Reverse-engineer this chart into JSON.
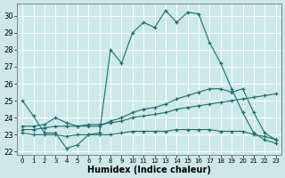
{
  "xlabel": "Humidex (Indice chaleur)",
  "bg_color": "#cce8e8",
  "grid_color": "#b8d8d8",
  "line_color": "#1a6e6e",
  "xlim": [
    -0.5,
    23.5
  ],
  "ylim": [
    21.8,
    30.7
  ],
  "yticks": [
    22,
    23,
    24,
    25,
    26,
    27,
    28,
    29,
    30
  ],
  "xticks": [
    0,
    1,
    2,
    3,
    4,
    5,
    6,
    7,
    8,
    9,
    10,
    11,
    12,
    13,
    14,
    15,
    16,
    17,
    18,
    19,
    20,
    21,
    22,
    23
  ],
  "lines": [
    {
      "x": [
        0,
        1,
        2,
        3,
        4,
        5,
        6,
        7,
        8,
        9,
        10,
        11,
        12,
        13,
        14,
        15,
        16,
        17,
        18,
        19,
        20,
        21,
        22,
        23
      ],
      "y": [
        25.0,
        24.1,
        23.1,
        23.1,
        22.2,
        22.4,
        23.0,
        23.1,
        28.0,
        27.2,
        29.0,
        29.6,
        29.3,
        30.3,
        29.6,
        30.2,
        30.1,
        28.4,
        27.2,
        25.7,
        24.3,
        23.1,
        22.7,
        22.5
      ]
    },
    {
      "x": [
        0,
        1,
        2,
        3,
        4,
        5,
        6,
        7,
        8,
        9,
        10,
        11,
        12,
        13,
        14,
        15,
        16,
        17,
        18,
        19,
        20,
        21,
        22,
        23
      ],
      "y": [
        23.1,
        23.0,
        23.0,
        23.0,
        22.9,
        23.0,
        23.0,
        23.0,
        23.0,
        23.1,
        23.2,
        23.2,
        23.2,
        23.2,
        23.3,
        23.3,
        23.3,
        23.3,
        23.2,
        23.2,
        23.2,
        23.0,
        22.9,
        22.7
      ]
    },
    {
      "x": [
        0,
        1,
        2,
        3,
        4,
        5,
        6,
        7,
        8,
        9,
        10,
        11,
        12,
        13,
        14,
        15,
        16,
        17,
        18,
        19,
        20,
        21,
        22,
        23
      ],
      "y": [
        23.3,
        23.3,
        23.4,
        23.5,
        23.5,
        23.5,
        23.6,
        23.6,
        23.7,
        23.8,
        24.0,
        24.1,
        24.2,
        24.3,
        24.5,
        24.6,
        24.7,
        24.8,
        24.9,
        25.0,
        25.1,
        25.2,
        25.3,
        25.4
      ]
    },
    {
      "x": [
        0,
        1,
        2,
        3,
        4,
        5,
        6,
        7,
        8,
        9,
        10,
        11,
        12,
        13,
        14,
        15,
        16,
        17,
        18,
        19,
        20,
        21,
        22,
        23
      ],
      "y": [
        23.5,
        23.5,
        23.6,
        24.0,
        23.7,
        23.5,
        23.5,
        23.5,
        23.8,
        24.0,
        24.3,
        24.5,
        24.6,
        24.8,
        25.1,
        25.3,
        25.5,
        25.7,
        25.7,
        25.5,
        25.7,
        24.3,
        23.1,
        22.7
      ]
    }
  ]
}
